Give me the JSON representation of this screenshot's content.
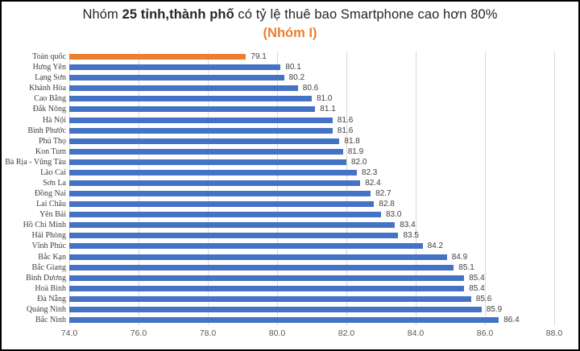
{
  "header": {
    "title_prefix": "Nhóm ",
    "title_bold": "25 tỉnh,thành phố",
    "title_suffix": " có tỷ lệ thuê bao Smartphone cao hơn 80%",
    "subtitle": "(Nhóm I)"
  },
  "colors": {
    "bar_default": "#4472C4",
    "bar_highlight": "#ED7D31",
    "subtitle_text": "#ED7D31",
    "gridline": "#D9D9D9",
    "axis_text": "#595959",
    "label_text": "#404040"
  },
  "chart_data": {
    "type": "bar",
    "orientation": "horizontal",
    "title": "Nhóm 25 tỉnh,thành phố có tỷ lệ thuê bao Smartphone cao hơn 80%",
    "subtitle": "(Nhóm I)",
    "categories": [
      "Toàn quốc",
      "Hưng Yên",
      "Lạng Sơn",
      "Khánh Hòa",
      "Cao Bằng",
      "Đắk Nông",
      "Hà Nội",
      "Bình Phước",
      "Phú Thọ",
      "Kon Tum",
      "Bà Rịa - Vũng Tàu",
      "Lào Cai",
      "Sơn La",
      "Đồng Nai",
      "Lai Châu",
      "Yên Bái",
      "Hồ Chí Minh",
      "Hải Phòng",
      "Vĩnh Phúc",
      "Bắc Kạn",
      "Bắc Giang",
      "Bình Dương",
      "Hoà Bình",
      "Đà Nẵng",
      "Quảng Ninh",
      "Bắc Ninh"
    ],
    "values": [
      79.1,
      80.1,
      80.2,
      80.6,
      81.0,
      81.1,
      81.6,
      81.6,
      81.8,
      81.9,
      82.0,
      82.3,
      82.4,
      82.7,
      82.8,
      83.0,
      83.4,
      83.5,
      84.2,
      84.9,
      85.1,
      85.4,
      85.4,
      85.6,
      85.9,
      86.4
    ],
    "highlight_category": "Toàn quốc",
    "value_labels": true,
    "xlim": [
      74.0,
      88.0
    ],
    "xticks": [
      74.0,
      76.0,
      78.0,
      80.0,
      82.0,
      84.0,
      86.0,
      88.0
    ],
    "grid": "vertical",
    "legend": "none"
  }
}
